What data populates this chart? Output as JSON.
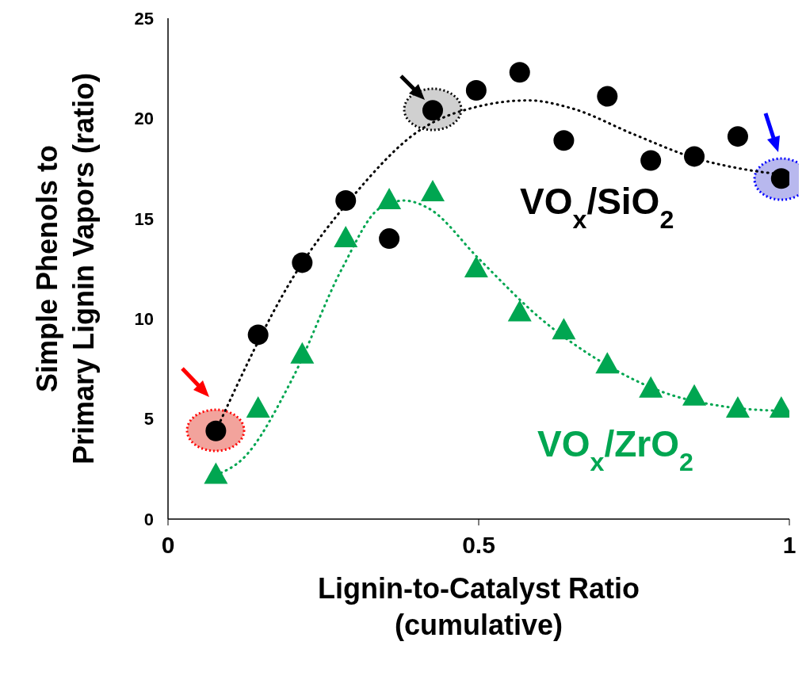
{
  "chart_data": {
    "type": "scatter",
    "xlabel": "Lignin-to-Catalyst Ratio\n(cumulative)",
    "ylabel": "Simple Phenols to\nPrimary Lignin Vapors (ratio)",
    "xlim": [
      0,
      1
    ],
    "xticks": [
      0,
      0.5,
      1
    ],
    "ylim": [
      0,
      25
    ],
    "yticks": [
      0,
      5,
      10,
      15,
      20,
      25
    ],
    "series": [
      {
        "name": "VO$_{x}$/SiO$_{2}$",
        "color": "#000000",
        "marker": "circle",
        "x": [
          0.077,
          0.145,
          0.216,
          0.286,
          0.356,
          0.426,
          0.496,
          0.566,
          0.637,
          0.707,
          0.777,
          0.847,
          0.917,
          0.987
        ],
        "values": [
          4.4,
          9.2,
          12.8,
          15.9,
          14.0,
          20.4,
          21.4,
          22.3,
          18.9,
          21.1,
          17.9,
          18.1,
          19.1,
          17.0
        ]
      },
      {
        "name": "VO$_{x}$/ZrO$_{2}$",
        "color": "#00a651",
        "marker": "triangle",
        "x": [
          0.077,
          0.145,
          0.216,
          0.286,
          0.356,
          0.426,
          0.496,
          0.566,
          0.637,
          0.707,
          0.777,
          0.847,
          0.917,
          0.987
        ],
        "values": [
          2.2,
          5.5,
          8.2,
          14.0,
          15.9,
          16.3,
          12.5,
          10.3,
          9.4,
          7.7,
          6.5,
          6.1,
          5.5,
          5.5
        ]
      },
      {
        "type": "line",
        "color": "#000000",
        "line_style": "dotted",
        "x": [
          0.077,
          0.2,
          0.3,
          0.4,
          0.5,
          0.58,
          0.65,
          0.75,
          0.85,
          0.92,
          0.987
        ],
        "values": [
          4.4,
          12,
          16.2,
          19.3,
          20.6,
          20.9,
          20.5,
          19.2,
          18,
          17.5,
          17.2
        ]
      },
      {
        "type": "line",
        "color": "#00a651",
        "line_style": "dotted",
        "x": [
          0.077,
          0.12,
          0.2,
          0.28,
          0.34,
          0.38,
          0.42,
          0.5,
          0.6,
          0.7,
          0.8,
          0.9,
          0.987
        ],
        "values": [
          2.2,
          3,
          7,
          12.5,
          15.5,
          15.9,
          15.5,
          13,
          10,
          7.8,
          6.3,
          5.6,
          5.4
        ]
      }
    ]
  }
}
